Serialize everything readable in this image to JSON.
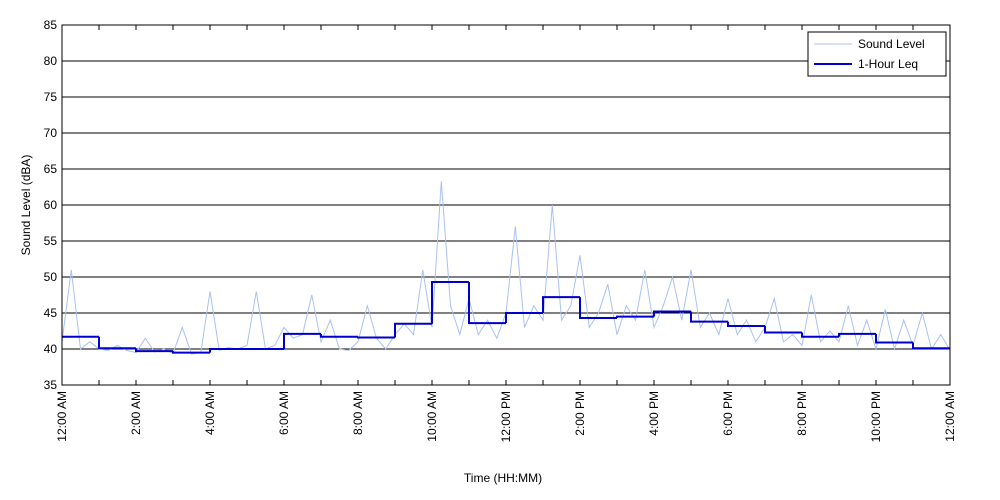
{
  "chart_data": {
    "type": "line",
    "xlabel": "Time (HH:MM)",
    "ylabel": "Sound Level (dBA)",
    "xlim": [
      0,
      24
    ],
    "ylim": [
      35,
      85
    ],
    "yticks": [
      35,
      40,
      45,
      50,
      55,
      60,
      65,
      70,
      75,
      80,
      85
    ],
    "xticks": [
      {
        "value": 0,
        "label": "12:00 AM"
      },
      {
        "value": 2,
        "label": "2:00 AM"
      },
      {
        "value": 4,
        "label": "4:00 AM"
      },
      {
        "value": 6,
        "label": "6:00 AM"
      },
      {
        "value": 8,
        "label": "8:00 AM"
      },
      {
        "value": 10,
        "label": "10:00 AM"
      },
      {
        "value": 12,
        "label": "12:00 PM"
      },
      {
        "value": 14,
        "label": "2:00 PM"
      },
      {
        "value": 16,
        "label": "4:00 PM"
      },
      {
        "value": 18,
        "label": "6:00 PM"
      },
      {
        "value": 20,
        "label": "8:00 PM"
      },
      {
        "value": 22,
        "label": "10:00 PM"
      },
      {
        "value": 24,
        "label": "12:00 AM"
      }
    ],
    "xminorticks": [
      1,
      3,
      5,
      7,
      9,
      11,
      13,
      15,
      17,
      19,
      21,
      23
    ],
    "grid": true,
    "legend": "upper right",
    "series": [
      {
        "name": "Sound Level",
        "color": "#a9c1f2",
        "style": "line",
        "x": [
          0,
          0.25,
          0.5,
          0.75,
          1,
          1.25,
          1.5,
          1.75,
          2,
          2.25,
          2.5,
          2.75,
          3,
          3.25,
          3.5,
          3.75,
          4,
          4.25,
          4.5,
          4.75,
          5,
          5.25,
          5.5,
          5.75,
          6,
          6.25,
          6.5,
          6.75,
          7,
          7.25,
          7.5,
          7.75,
          8,
          8.25,
          8.5,
          8.75,
          9,
          9.25,
          9.5,
          9.75,
          10,
          10.25,
          10.5,
          10.75,
          11,
          11.25,
          11.5,
          11.75,
          12,
          12.25,
          12.5,
          12.75,
          13,
          13.25,
          13.5,
          13.75,
          14,
          14.25,
          14.5,
          14.75,
          15,
          15.25,
          15.5,
          15.75,
          16,
          16.25,
          16.5,
          16.75,
          17,
          17.25,
          17.5,
          17.75,
          18,
          18.25,
          18.5,
          18.75,
          19,
          19.25,
          19.5,
          19.75,
          20,
          20.25,
          20.5,
          20.75,
          21,
          21.25,
          21.5,
          21.75,
          22,
          22.25,
          22.5,
          22.75,
          23,
          23.25,
          23.5,
          23.75,
          24
        ],
        "values": [
          41,
          51,
          40,
          41,
          40,
          39.8,
          40.5,
          39.8,
          39.5,
          41.5,
          39.6,
          40,
          39.4,
          43,
          39.3,
          39.5,
          48,
          39.8,
          40.2,
          40,
          40.5,
          48,
          40,
          40.5,
          43,
          41.5,
          42,
          47.5,
          41,
          44,
          40,
          39.8,
          41,
          46,
          41.5,
          40,
          42,
          43.5,
          42,
          51,
          43,
          63.3,
          46,
          42,
          47,
          42,
          44,
          41.5,
          45,
          57,
          43,
          46,
          44,
          60,
          44,
          46,
          53,
          43,
          45,
          49,
          42,
          46,
          44,
          51,
          43,
          46,
          50,
          44,
          51,
          43,
          45,
          42,
          47,
          42,
          44,
          41,
          43,
          47,
          41,
          42,
          40.5,
          47.5,
          41,
          42.5,
          41,
          46,
          40.5,
          44,
          40,
          45.5,
          40,
          44,
          40.5,
          45,
          40,
          42,
          39.8
        ]
      },
      {
        "name": "1-Hour Leq",
        "color": "#0000cc",
        "style": "step",
        "x": [
          0,
          1,
          2,
          3,
          4,
          5,
          6,
          7,
          8,
          9,
          10,
          11,
          12,
          13,
          14,
          15,
          16,
          17,
          18,
          19,
          20,
          21,
          22,
          23
        ],
        "values": [
          41.7,
          40.1,
          39.7,
          39.5,
          40.0,
          40.0,
          42.1,
          41.7,
          41.6,
          43.5,
          49.3,
          43.6,
          45.0,
          47.2,
          44.3,
          44.5,
          45.2,
          43.8,
          43.2,
          42.3,
          41.7,
          42.1,
          40.9,
          40.1
        ]
      }
    ]
  }
}
